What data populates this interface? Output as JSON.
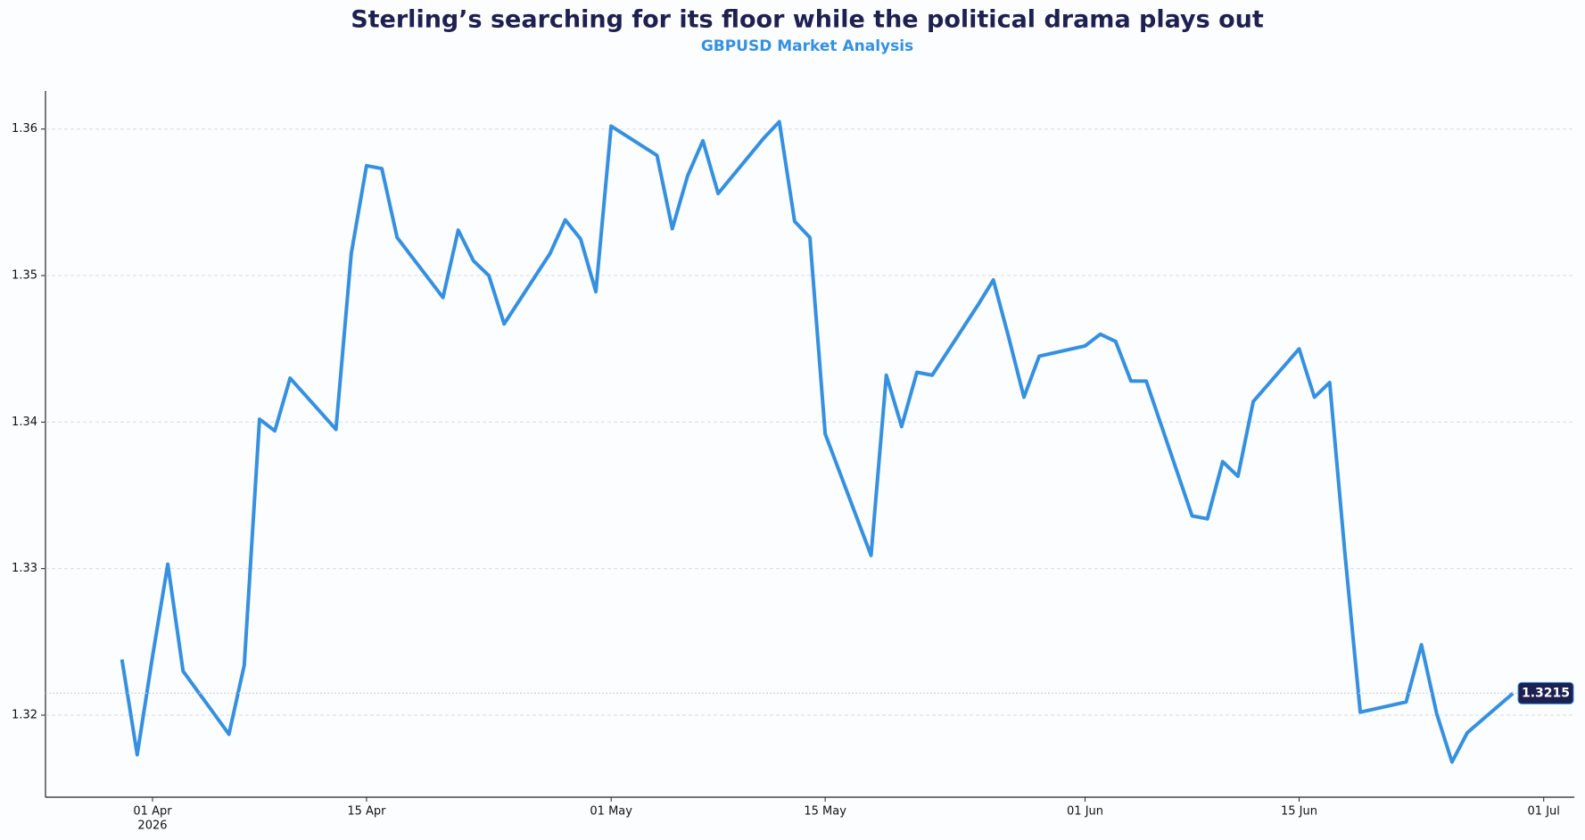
{
  "chart_data": {
    "type": "line",
    "title": "Sterling’s searching for its floor while the political drama plays out",
    "subtitle": "GBPUSD Market Analysis",
    "x": [
      "2026-03-30",
      "2026-03-31",
      "2026-04-01",
      "2026-04-02",
      "2026-04-03",
      "2026-04-06",
      "2026-04-07",
      "2026-04-08",
      "2026-04-09",
      "2026-04-10",
      "2026-04-13",
      "2026-04-14",
      "2026-04-15",
      "2026-04-16",
      "2026-04-17",
      "2026-04-20",
      "2026-04-21",
      "2026-04-22",
      "2026-04-23",
      "2026-04-24",
      "2026-04-27",
      "2026-04-28",
      "2026-04-29",
      "2026-04-30",
      "2026-05-01",
      "2026-05-04",
      "2026-05-05",
      "2026-05-06",
      "2026-05-07",
      "2026-05-08",
      "2026-05-11",
      "2026-05-12",
      "2026-05-13",
      "2026-05-14",
      "2026-05-15",
      "2026-05-18",
      "2026-05-19",
      "2026-05-20",
      "2026-05-21",
      "2026-05-22",
      "2026-05-25",
      "2026-05-26",
      "2026-05-27",
      "2026-05-28",
      "2026-05-29",
      "2026-06-01",
      "2026-06-02",
      "2026-06-03",
      "2026-06-04",
      "2026-06-05",
      "2026-06-08",
      "2026-06-09",
      "2026-06-10",
      "2026-06-11",
      "2026-06-12",
      "2026-06-15",
      "2026-06-16",
      "2026-06-17",
      "2026-06-18",
      "2026-06-19",
      "2026-06-22",
      "2026-06-23",
      "2026-06-24",
      "2026-06-25",
      "2026-06-26",
      "2026-06-29"
    ],
    "series": [
      {
        "name": "GBPUSD",
        "color": "#3590e0",
        "values": [
          1.3238,
          1.3173,
          1.324,
          1.3303,
          1.323,
          1.3187,
          1.3234,
          1.3402,
          1.3394,
          1.343,
          1.3395,
          1.3515,
          1.3575,
          1.3573,
          1.3526,
          1.3485,
          1.3531,
          1.351,
          1.35,
          1.3467,
          1.3515,
          1.3538,
          1.3525,
          1.3489,
          1.3602,
          1.3582,
          1.3532,
          1.3568,
          1.3592,
          1.3556,
          1.3594,
          1.3605,
          1.3537,
          1.3526,
          1.3392,
          1.3309,
          1.3432,
          1.3397,
          1.3434,
          1.3432,
          1.348,
          1.3497,
          1.3458,
          1.3417,
          1.3445,
          1.3452,
          1.346,
          1.3455,
          1.3428,
          1.3428,
          1.3336,
          1.3334,
          1.3373,
          1.3363,
          1.3414,
          1.345,
          1.3417,
          1.3427,
          1.331,
          1.3202,
          1.3209,
          1.3248,
          1.3201,
          1.3168,
          1.3188,
          1.3215
        ]
      }
    ],
    "xlim": [
      "2026-03-25",
      "2026-07-03"
    ],
    "xticks": [
      {
        "value": "2026-04-01",
        "label": "01 Apr"
      },
      {
        "value": "2026-04-15",
        "label": "15 Apr"
      },
      {
        "value": "2026-05-01",
        "label": "01 May"
      },
      {
        "value": "2026-05-15",
        "label": "15 May"
      },
      {
        "value": "2026-06-01",
        "label": "01 Jun"
      },
      {
        "value": "2026-06-15",
        "label": "15 Jun"
      },
      {
        "value": "2026-07-01",
        "label": "01 Jul"
      }
    ],
    "xtick_year": "2026",
    "ylim": [
      1.3144,
      1.3626
    ],
    "yticks": [
      1.32,
      1.33,
      1.34,
      1.35,
      1.36
    ],
    "grid": true
  }
}
